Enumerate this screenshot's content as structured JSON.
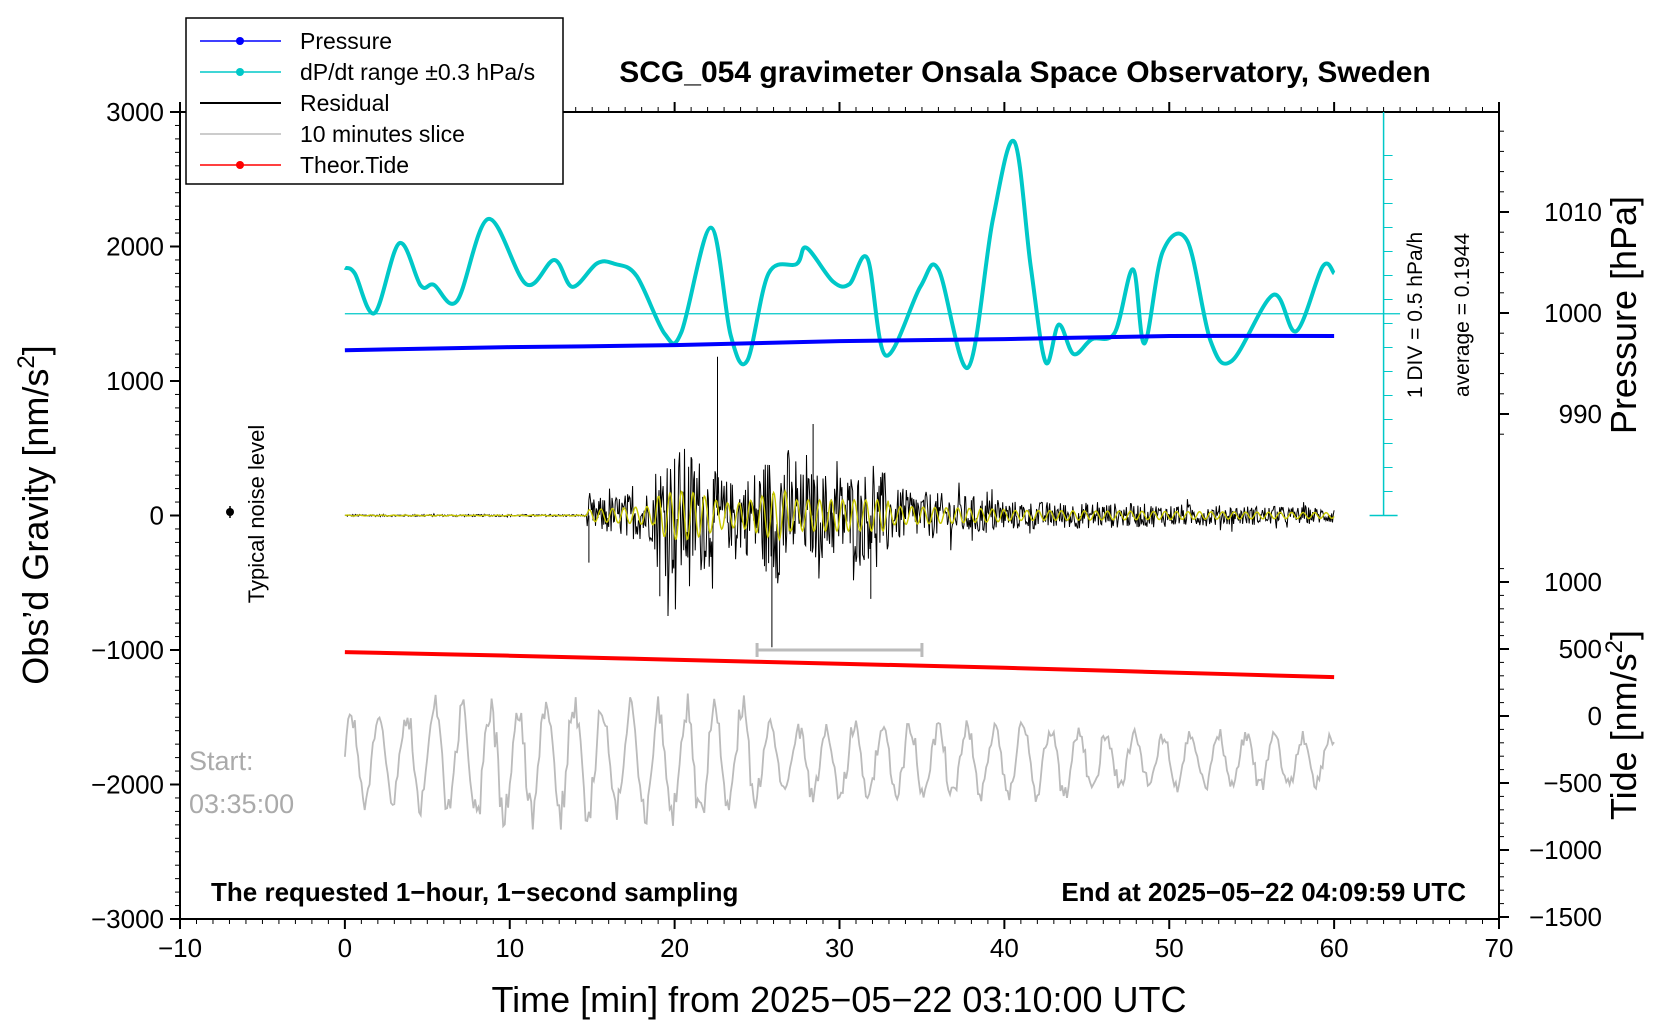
{
  "chart_data": {
    "type": "line",
    "title": "SCG_054 gravimeter Onsala Space Observatory, Sweden",
    "xlabel": "Time [min] from 2025−05−22 03:10:00 UTC",
    "ylabel_left_text": "Obs’d Gravity [nm/s",
    "ylabel_left_sup": "2",
    "ylabel_left_close": "]",
    "ylabel_right_pressure": "Pressure [hPa]",
    "ylabel_right_tide_text": "Tide [nm/s",
    "ylabel_right_tide_sup": "2",
    "ylabel_right_tide_close": "]",
    "xlim": [
      -10,
      70
    ],
    "ylim_left": [
      -3000,
      3000
    ],
    "x_ticks": [
      "−10",
      "0",
      "10",
      "20",
      "30",
      "40",
      "50",
      "60",
      "70"
    ],
    "y_ticks_left": [
      "3000",
      "2000",
      "1000",
      "0",
      "−1000",
      "−2000",
      "−3000"
    ],
    "pressure_ticks": [
      "1010",
      "1000",
      "990"
    ],
    "tide_ticks": [
      "1000",
      "500",
      "0",
      "−500",
      "−1000",
      "−1500"
    ],
    "legend": {
      "placement": "top-left",
      "entries": [
        {
          "label": "Pressure",
          "color": "#0000ff",
          "marker": true
        },
        {
          "label": "dP/dt range ±0.3 hPa/s",
          "color": "#00c8c8",
          "marker": true
        },
        {
          "label": "Residual",
          "color": "#000000",
          "marker": false
        },
        {
          "label": "10 minutes slice",
          "color": "#bbbbbb",
          "marker": false
        },
        {
          "label": "Theor.Tide",
          "color": "#ff0000",
          "marker": true
        }
      ]
    },
    "annotations": {
      "noise_label": "Typical noise level",
      "div_label": "1 DIV = 0.5 hPa/h",
      "average_label": "average = 0.1944",
      "start_label": "Start:",
      "start_time": "03:35:00",
      "footer_left": "The requested 1−hour, 1−second sampling",
      "footer_right": "End at 2025−05−22 04:09:59 UTC"
    },
    "slice_range_min": [
      25,
      35
    ],
    "pressure_series": {
      "name": "Pressure",
      "color": "#0000ff",
      "x": [
        0,
        10,
        20,
        30,
        40,
        50,
        60
      ],
      "y_hPa": [
        998.0,
        998.3,
        998.5,
        998.9,
        999.1,
        999.4,
        999.4
      ]
    },
    "tide_series": {
      "name": "Theor.Tide",
      "color": "#ff0000",
      "x": [
        0,
        10,
        20,
        30,
        40,
        50,
        60
      ],
      "y": [
        477,
        450,
        420,
        390,
        360,
        325,
        290
      ]
    },
    "dpdt_series": {
      "name": "dP/dt range ±0.3 hPa/s",
      "color": "#00c8c8",
      "baseline_hPa": 1000,
      "x": [
        0,
        0.6,
        1.8,
        3.3,
        4.6,
        5.4,
        6.8,
        8.7,
        11.0,
        12.7,
        13.8,
        15.3,
        16.4,
        17.7,
        19.4,
        20.4,
        22.2,
        23.4,
        24.4,
        25.7,
        27.4,
        28.0,
        29.6,
        30.6,
        31.7,
        32.8,
        34.9,
        36.0,
        37.8,
        39.3,
        40.6,
        41.6,
        42.5,
        43.3,
        44.2,
        45.3,
        46.7,
        47.8,
        48.5,
        49.6,
        51.1,
        52.5,
        53.8,
        56.3,
        57.7,
        59.3,
        60
      ],
      "y": [
        1842,
        1800,
        1505,
        2024,
        1710,
        1715,
        1595,
        2205,
        1720,
        1900,
        1700,
        1875,
        1870,
        1780,
        1350,
        1360,
        2140,
        1340,
        1150,
        1800,
        1870,
        1990,
        1740,
        1720,
        1910,
        1190,
        1700,
        1830,
        1100,
        2200,
        2780,
        1850,
        1140,
        1420,
        1200,
        1310,
        1360,
        1830,
        1280,
        1960,
        2040,
        1300,
        1150,
        1640,
        1370,
        1850,
        1800
      ]
    },
    "residual_description": {
      "name": "Residual",
      "color": "#000000",
      "filtered_color": "#c8c800",
      "x_range": [
        0,
        60
      ],
      "peak_max": 1180,
      "peak_min": -980,
      "onset_min": 14.7,
      "peak_time_min": 22.5
    },
    "slice_series": {
      "name": "10 minutes slice",
      "color": "#bbbbbb",
      "x_range": [
        0,
        60
      ],
      "baseline": -1820,
      "max": -1150,
      "min": -2640
    }
  }
}
